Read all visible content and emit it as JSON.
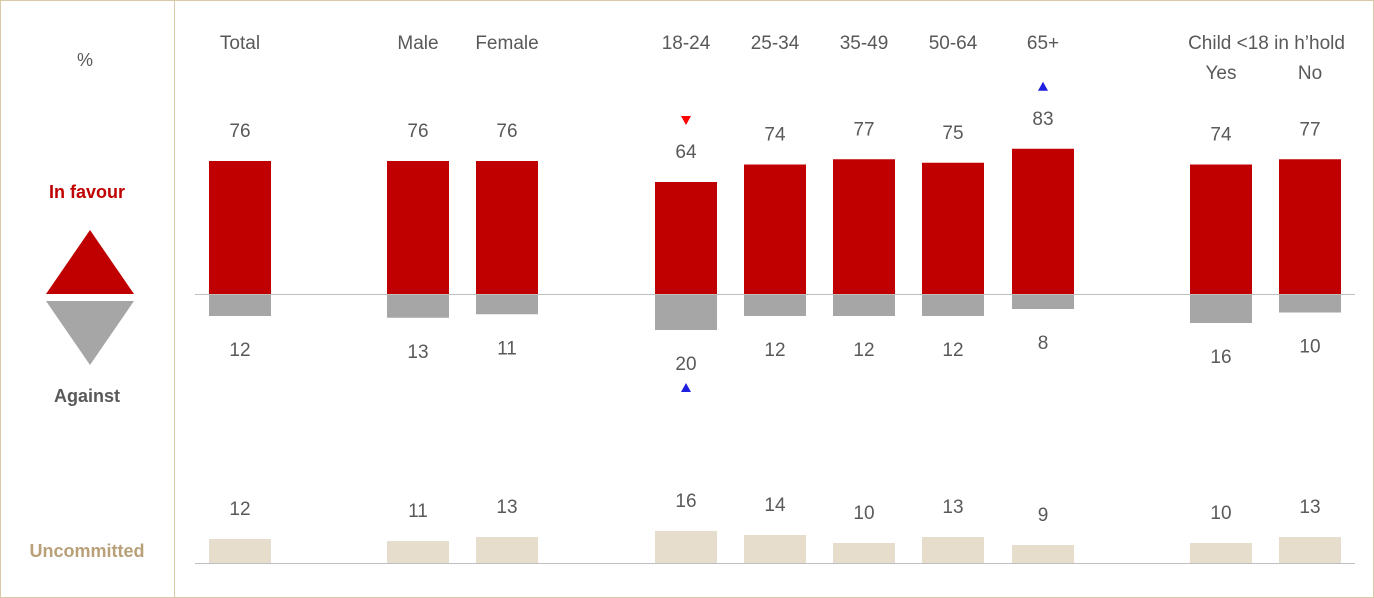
{
  "labels": {
    "percent": "%",
    "in_favour": "In favour",
    "against": "Against",
    "uncommitted": "Uncommitted",
    "child_group": "Child <18 in h’hold"
  },
  "colors": {
    "in_favour": "#c00000",
    "against": "#a6a6a6",
    "uncommitted": "#e7ddcd",
    "uncommitted_text": "#b8a179",
    "axis": "#bfbfbf",
    "text": "#595959",
    "arrow_up": "#1f1fdf",
    "arrow_down": "#ff0000"
  },
  "chart_data": {
    "type": "bar",
    "categories": [
      "Total",
      "Male",
      "Female",
      "18-24",
      "25-34",
      "35-49",
      "50-64",
      "65+",
      "Yes",
      "No"
    ],
    "series": [
      {
        "name": "In favour",
        "values": [
          76,
          76,
          76,
          64,
          74,
          77,
          75,
          83,
          74,
          77
        ]
      },
      {
        "name": "Against",
        "values": [
          12,
          13,
          11,
          20,
          12,
          12,
          12,
          8,
          16,
          10
        ]
      },
      {
        "name": "Uncommitted",
        "values": [
          12,
          11,
          13,
          16,
          14,
          10,
          13,
          9,
          10,
          13
        ]
      }
    ],
    "significance_markers": [
      {
        "category": "18-24",
        "series": "In favour",
        "direction": "down"
      },
      {
        "category": "18-24",
        "series": "Against",
        "direction": "up"
      },
      {
        "category": "65+",
        "series": "In favour",
        "direction": "up"
      }
    ],
    "group_labels": [
      {
        "label": "Child <18 in h’hold",
        "categories": [
          "Yes",
          "No"
        ]
      }
    ]
  }
}
